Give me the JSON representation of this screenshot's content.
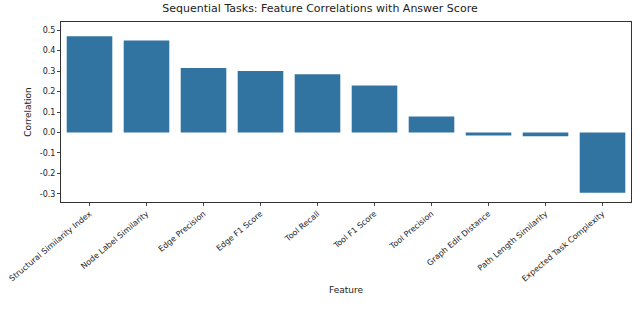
{
  "chart_data": {
    "type": "bar",
    "title": "Sequential Tasks: Feature Correlations with Answer Score",
    "x_label": "Feature",
    "y_label": "Correlation",
    "categories": [
      "Structural Similarity Index",
      "Node Label Similarity",
      "Edge Precision",
      "Edge F1 Score",
      "Tool Recall",
      "Tool F1 Score",
      "Tool Precision",
      "Graph Edit Distance",
      "Path Length Similarity",
      "Expected Task Complexity"
    ],
    "values": [
      0.47,
      0.45,
      0.315,
      0.3,
      0.285,
      0.23,
      0.078,
      -0.015,
      -0.018,
      -0.295
    ],
    "color": "#3274a1",
    "ylim": [
      -0.34,
      0.54
    ],
    "yticks": [
      -0.3,
      -0.2,
      -0.1,
      0.0,
      0.1,
      0.2,
      0.3,
      0.4,
      0.5
    ],
    "grid": false
  }
}
